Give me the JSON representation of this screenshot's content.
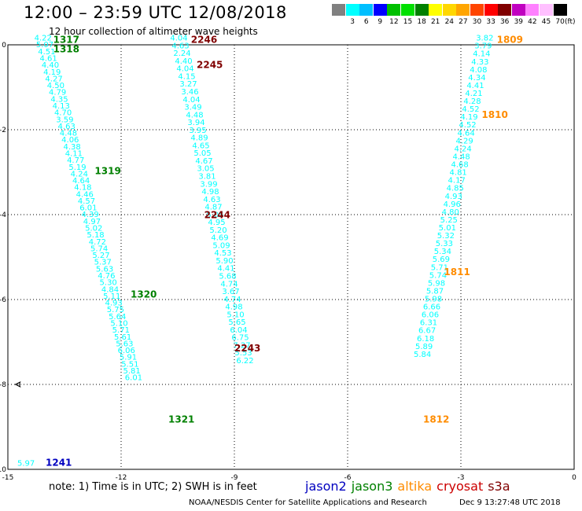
{
  "title": "12:00 – 23:59 UTC 12/08/2018",
  "subtitle": "12 hour collection of altimeter wave heights",
  "scale": {
    "unit": "(ft)",
    "colors": [
      "#808080",
      "#00ffff",
      "#00bfff",
      "#0000ff",
      "#00c000",
      "#00e000",
      "#008000",
      "#ffff00",
      "#ffd700",
      "#ffa500",
      "#ff4500",
      "#ff0000",
      "#800000",
      "#c000c0",
      "#ff80ff",
      "#ffc0ff",
      "#000000"
    ],
    "labels": [
      "",
      "3",
      "6",
      "9",
      "12",
      "15",
      "18",
      "21",
      "24",
      "27",
      "30",
      "33",
      "36",
      "39",
      "42",
      "45",
      "70"
    ]
  },
  "axes": {
    "xrange": [
      -15,
      0
    ],
    "yrange": [
      -10,
      0
    ],
    "xticks": [
      "-15",
      "-12",
      "-9",
      "-6",
      "-3",
      "0"
    ],
    "yticks": [
      "0",
      "-2",
      "-4",
      "-6",
      "-8",
      "-10"
    ]
  },
  "chart_data": {
    "type": "scatter",
    "tracks": [
      {
        "name": "jason3 track A",
        "satellite": "jason3",
        "color": "#00ffff",
        "start": [
          -14.3,
          0.1
        ],
        "end": [
          -11.9,
          -7.9
        ],
        "values": [
          "4.22",
          "5.07",
          "4.51",
          "4.61",
          "4.40",
          "4.19",
          "4.27",
          "4.50",
          "4.79",
          "4.35",
          "4.13",
          "4.70",
          "3.59",
          "4.63",
          "4.48",
          "4.06",
          "4.38",
          "4.11",
          "4.77",
          "5.19",
          "4.24",
          "4.64",
          "4.18",
          "4.46",
          "4.57",
          "6.01",
          "4.39",
          "4.97",
          "5.02",
          "5.18",
          "4.72",
          "5.74",
          "5.27",
          "5.37",
          "5.63",
          "4.76",
          "5.30",
          "4.84",
          "5.11",
          "4.93",
          "5.75",
          "5.64",
          "5.10",
          "5.71",
          "5.61",
          "5.63",
          "6.06",
          "5.91",
          "5.51",
          "5.81",
          "6.01"
        ]
      },
      {
        "name": "cryosat track",
        "satellite": "cryosat",
        "color": "#00ffff",
        "start": [
          -10.7,
          0.1
        ],
        "end": [
          -8.95,
          -7.5
        ],
        "values": [
          "4.04",
          "4.63",
          "2.24",
          "4.40",
          "4.04",
          "4.15",
          "3.27",
          "3.46",
          "4.04",
          "3.49",
          "4.48",
          "3.94",
          "3.95",
          "4.89",
          "4.65",
          "5.05",
          "4.67",
          "3.05",
          "3.81",
          "3.99",
          "4.98",
          "4.63",
          "4.87",
          "5.05",
          "4.95",
          "5.20",
          "4.69",
          "5.09",
          "4.53",
          "5.90",
          "4.41",
          "5.68",
          "4.74",
          "3.67",
          "4.74",
          "4.98",
          "5.10",
          "5.65",
          "6.04",
          "6.75",
          "7.27",
          "5.53",
          "6.22"
        ]
      },
      {
        "name": "altika track",
        "satellite": "altika",
        "color": "#00ffff",
        "start": [
          -2.6,
          0.1
        ],
        "end": [
          -4.25,
          -7.35
        ],
        "values": [
          "3.82",
          "3.79",
          "4.14",
          "4.33",
          "4.08",
          "4.34",
          "4.41",
          "4.21",
          "4.28",
          "4.52",
          "4.19",
          "4.52",
          "4.64",
          "4.29",
          "4.24",
          "4.48",
          "4.68",
          "4.81",
          "4.17",
          "4.85",
          "4.93",
          "4.96",
          "4.80",
          "5.25",
          "5.01",
          "5.32",
          "5.33",
          "5.34",
          "5.69",
          "5.71",
          "5.74",
          "5.98",
          "5.87",
          "5.98",
          "6.66",
          "6.06",
          "6.31",
          "6.67",
          "6.18",
          "5.89",
          "5.84"
        ]
      },
      {
        "name": "jason3 point",
        "satellite": "jason3",
        "color": "#00ffff",
        "start": [
          -14.75,
          -9.92
        ],
        "end": [
          -14.75,
          -9.92
        ],
        "values": [
          "5.97"
        ]
      }
    ],
    "time_labels": [
      {
        "text": "1317",
        "satellite": "jason3",
        "color": "#008000",
        "x": -13.8,
        "y": 0.05
      },
      {
        "text": "1318",
        "satellite": "jason3",
        "color": "#008000",
        "x": -13.8,
        "y": -0.18
      },
      {
        "text": "1319",
        "satellite": "jason3",
        "color": "#008000",
        "x": -12.7,
        "y": -3.05
      },
      {
        "text": "1320",
        "satellite": "jason3",
        "color": "#008000",
        "x": -11.75,
        "y": -5.95
      },
      {
        "text": "1321",
        "satellite": "jason3",
        "color": "#008000",
        "x": -10.75,
        "y": -8.9
      },
      {
        "text": "1241",
        "satellite": "jason2",
        "color": "#0000c0",
        "x": -14.0,
        "y": -9.92
      },
      {
        "text": "2246",
        "satellite": "cryosat",
        "color": "#800000",
        "x": -10.15,
        "y": 0.05
      },
      {
        "text": "2245",
        "satellite": "cryosat",
        "color": "#800000",
        "x": -10.0,
        "y": -0.55
      },
      {
        "text": "2244",
        "satellite": "cryosat",
        "color": "#800000",
        "x": -9.8,
        "y": -4.08
      },
      {
        "text": "2243",
        "satellite": "cryosat",
        "color": "#800000",
        "x": -9.0,
        "y": -7.22
      },
      {
        "text": "1809",
        "satellite": "altika",
        "color": "#ff8c00",
        "x": -2.05,
        "y": 0.05
      },
      {
        "text": "1810",
        "satellite": "altika",
        "color": "#ff8c00",
        "x": -2.45,
        "y": -1.72
      },
      {
        "text": "1811",
        "satellite": "altika",
        "color": "#ff8c00",
        "x": -3.45,
        "y": -5.43
      },
      {
        "text": "1812",
        "satellite": "altika",
        "color": "#ff8c00",
        "x": -4.0,
        "y": -8.9
      }
    ]
  },
  "note": "note:  1) Time is in UTC;  2) SWH is in feet",
  "legend": [
    {
      "name": "jason2",
      "color": "#0000c0"
    },
    {
      "name": "jason3",
      "color": "#008000"
    },
    {
      "name": "altika",
      "color": "#ff8c00"
    },
    {
      "name": "cryosat",
      "color": "#cc0000"
    },
    {
      "name": "s3a",
      "color": "#800000"
    }
  ],
  "credit": "NOAA/NESDIS Center for Satellite Applications and Research",
  "timestamp": "Dec  9 13:27:48 UTC 2018"
}
